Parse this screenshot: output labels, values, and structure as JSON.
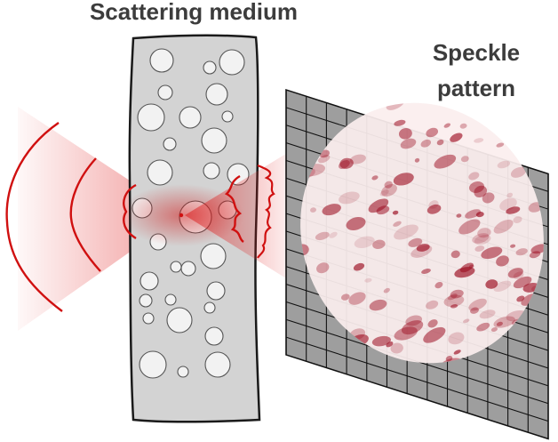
{
  "labels": {
    "medium": "Scattering medium",
    "speckle_line1": "Speckle",
    "speckle_line2": "pattern"
  },
  "colors": {
    "beam": "#d01010",
    "medium_fill": "#d3d3d3",
    "medium_stroke": "#1a1a1a",
    "grid_fill": "#9e9e9e",
    "speckle_dark": "#9b0a1e",
    "label_text": "#3c3c3c"
  },
  "medium": {
    "scatterer_count": 31
  },
  "detector": {
    "grid_rows": 15,
    "grid_cols": 13
  }
}
